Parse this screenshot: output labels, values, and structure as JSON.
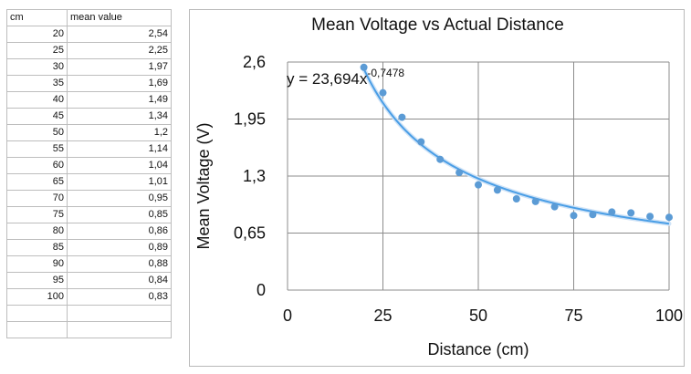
{
  "sheet": {
    "headers": [
      "cm",
      "mean value"
    ],
    "rows": [
      [
        "20",
        "2,54"
      ],
      [
        "25",
        "2,25"
      ],
      [
        "30",
        "1,97"
      ],
      [
        "35",
        "1,69"
      ],
      [
        "40",
        "1,49"
      ],
      [
        "45",
        "1,34"
      ],
      [
        "50",
        "1,2"
      ],
      [
        "55",
        "1,14"
      ],
      [
        "60",
        "1,04"
      ],
      [
        "65",
        "1,01"
      ],
      [
        "70",
        "0,95"
      ],
      [
        "75",
        "0,85"
      ],
      [
        "80",
        "0,86"
      ],
      [
        "85",
        "0,89"
      ],
      [
        "90",
        "0,88"
      ],
      [
        "95",
        "0,84"
      ],
      [
        "100",
        "0,83"
      ]
    ],
    "empty_rows": 2
  },
  "chart_data": {
    "type": "scatter",
    "title": "Mean Voltage vs Actual Distance",
    "xlabel": "Distance (cm)",
    "ylabel": "Mean Voltage (V)",
    "xlim": [
      0,
      100
    ],
    "ylim": [
      0,
      2.6
    ],
    "xticks": [
      0,
      25,
      50,
      75,
      100
    ],
    "xtick_labels": [
      "0",
      "25",
      "50",
      "75",
      "100"
    ],
    "yticks": [
      0,
      0.65,
      1.3,
      1.95,
      2.6
    ],
    "ytick_labels": [
      "0",
      "0,65",
      "1,3",
      "1,95",
      "2,6"
    ],
    "grid": true,
    "x": [
      20,
      25,
      30,
      35,
      40,
      45,
      50,
      55,
      60,
      65,
      70,
      75,
      80,
      85,
      90,
      95,
      100
    ],
    "y": [
      2.54,
      2.25,
      1.97,
      1.69,
      1.49,
      1.34,
      1.2,
      1.14,
      1.04,
      1.01,
      0.95,
      0.85,
      0.86,
      0.89,
      0.88,
      0.84,
      0.83
    ],
    "trendline": {
      "type": "power",
      "coefficient": 23.694,
      "exponent": -0.7478,
      "label_base": "y = 23,694x",
      "label_exponent": "-0,7478"
    },
    "colors": {
      "points": "#5b9bd5",
      "trend": "#4a9ee6",
      "grid": "#8c8c8c"
    }
  }
}
